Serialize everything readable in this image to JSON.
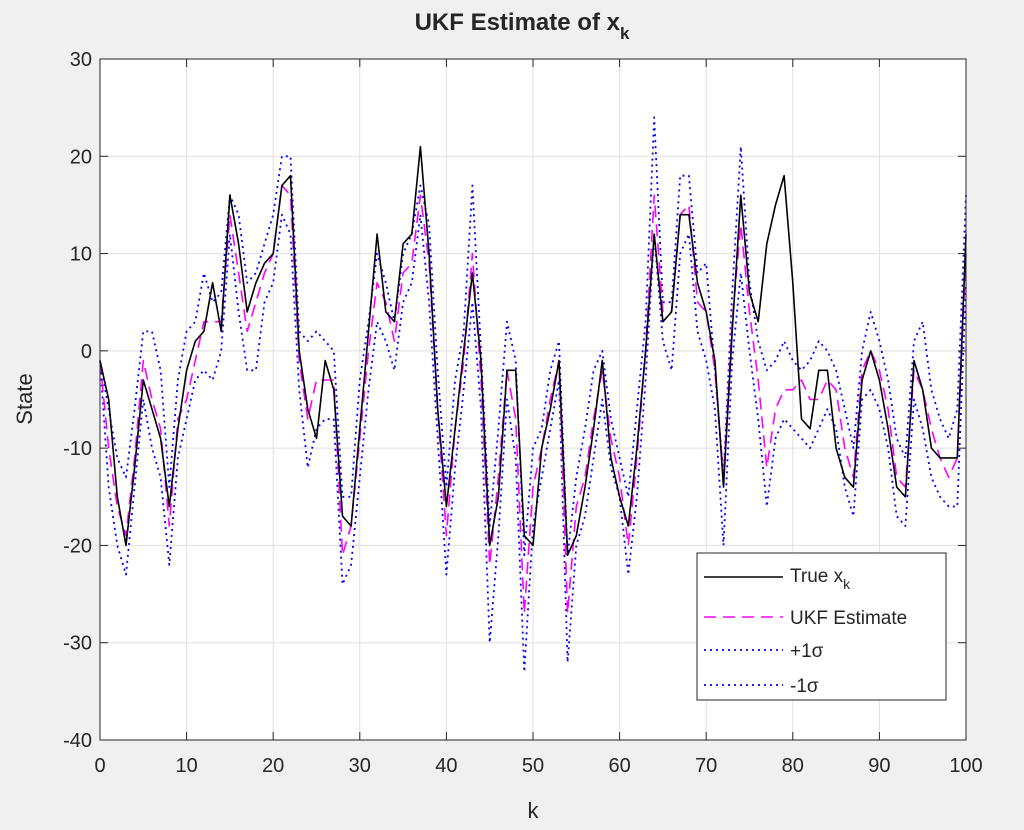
{
  "chart_data": {
    "type": "line",
    "title_main": "UKF Estimate of x",
    "title_sub": "k",
    "xlabel": "k",
    "ylabel": "State",
    "xlim": [
      0,
      100
    ],
    "ylim": [
      -40,
      30
    ],
    "xticks": [
      0,
      10,
      20,
      30,
      40,
      50,
      60,
      70,
      80,
      90,
      100
    ],
    "yticks": [
      -40,
      -30,
      -20,
      -10,
      0,
      10,
      20,
      30
    ],
    "grid": true,
    "legend_position": "bottom-right",
    "x": [
      0,
      1,
      2,
      3,
      4,
      5,
      6,
      7,
      8,
      9,
      10,
      11,
      12,
      13,
      14,
      15,
      16,
      17,
      18,
      19,
      20,
      21,
      22,
      23,
      24,
      25,
      26,
      27,
      28,
      29,
      30,
      31,
      32,
      33,
      34,
      35,
      36,
      37,
      38,
      39,
      40,
      41,
      42,
      43,
      44,
      45,
      46,
      47,
      48,
      49,
      50,
      51,
      52,
      53,
      54,
      55,
      56,
      57,
      58,
      59,
      60,
      61,
      62,
      63,
      64,
      65,
      66,
      67,
      68,
      69,
      70,
      71,
      72,
      73,
      74,
      75,
      76,
      77,
      78,
      79,
      80,
      81,
      82,
      83,
      84,
      85,
      86,
      87,
      88,
      89,
      90,
      91,
      92,
      93,
      94,
      95,
      96,
      97,
      98,
      99,
      100
    ],
    "series": [
      {
        "name": "True x",
        "name_sub": "k",
        "color": "#000000",
        "style": "solid",
        "values": [
          -1,
          -5,
          -15,
          -20,
          -12,
          -3,
          -6,
          -9,
          -16,
          -8,
          -2,
          1,
          2,
          7,
          2,
          16,
          11,
          4,
          7,
          9,
          10,
          17,
          18,
          0,
          -6,
          -9,
          -1,
          -4,
          -17,
          -18,
          -8,
          2,
          12,
          4,
          3,
          11,
          12,
          21,
          10,
          -6,
          -16,
          -8,
          0,
          8,
          -1,
          -20,
          -15,
          -2,
          -2,
          -19,
          -20,
          -10,
          -6,
          -1,
          -21,
          -19,
          -14,
          -8,
          -1,
          -11,
          -15,
          -18,
          -10,
          0,
          12,
          3,
          4,
          14,
          14,
          7,
          4,
          -1,
          -14,
          2,
          16,
          6,
          3,
          11,
          15,
          18,
          7,
          -7,
          -8,
          -2,
          -2,
          -10,
          -13,
          -14,
          -3,
          0,
          -3,
          -8,
          -14,
          -15,
          -1,
          -4,
          -10,
          -11,
          -11,
          -11,
          12
        ]
      },
      {
        "name": "UKF Estimate",
        "color": "#ff00ff",
        "style": "dashed",
        "values": [
          -1,
          -10,
          -16,
          -19,
          -11,
          -1,
          -5,
          -8,
          -18,
          -7,
          -5,
          -1,
          3,
          3,
          3,
          14,
          8,
          2,
          5,
          8,
          10,
          17,
          16,
          -1,
          -7,
          -3,
          -3,
          -3,
          -21,
          -18,
          -9,
          0,
          7,
          5,
          1,
          8,
          9,
          16,
          9,
          -6,
          -19,
          -8,
          -1,
          10,
          -3,
          -22,
          -13,
          -2,
          -7,
          -27,
          -14,
          -10,
          -5,
          -1,
          -27,
          -16,
          -13,
          -7,
          -2,
          -9,
          -13,
          -20,
          -11,
          0,
          16,
          4,
          4,
          14,
          15,
          5,
          4,
          -2,
          -13,
          3,
          13,
          4,
          -3,
          -12,
          -6,
          -4,
          -4,
          -3,
          -5,
          -5,
          -3,
          -4,
          -10,
          -13,
          -2,
          0,
          -2,
          -6,
          -13,
          -14,
          -2,
          -4,
          -8,
          -11,
          -13,
          -11,
          10
        ]
      },
      {
        "name": "+1σ",
        "color": "#0000ff",
        "style": "dotted",
        "values": [
          -1,
          -6,
          -11,
          -13,
          -6,
          2,
          2,
          -2,
          -14,
          -3,
          2,
          3,
          8,
          5,
          6,
          16,
          14,
          7,
          8,
          11,
          14,
          20,
          20,
          2,
          1,
          2,
          1,
          0,
          -15,
          -15,
          -3,
          3,
          10,
          7,
          3,
          10,
          12,
          17,
          13,
          -2,
          -14,
          -3,
          2,
          17,
          0,
          -18,
          -8,
          3,
          -1,
          -21,
          -10,
          -8,
          -2,
          1,
          -21,
          -13,
          -8,
          -2,
          0,
          -7,
          -11,
          -15,
          -6,
          3,
          24,
          5,
          5,
          18,
          18,
          8,
          9,
          -2,
          -13,
          6,
          21,
          7,
          1,
          -2,
          -1,
          1,
          -1,
          -2,
          -1,
          1,
          0,
          -2,
          -6,
          -10,
          0,
          4,
          1,
          -3,
          -9,
          -11,
          1,
          3,
          -4,
          -7,
          -9,
          -6,
          16
        ]
      },
      {
        "name": "-1σ",
        "color": "#0000ff",
        "style": "dotted",
        "values": [
          -1,
          -14,
          -20,
          -23,
          -14,
          -5,
          -10,
          -13,
          -22,
          -11,
          -7,
          -3,
          -2,
          -3,
          0,
          12,
          4,
          -2,
          -2,
          5,
          7,
          14,
          12,
          -4,
          -12,
          -8,
          -7,
          -7,
          -24,
          -22,
          -13,
          -4,
          3,
          1,
          -2,
          5,
          7,
          14,
          5,
          -9,
          -23,
          -12,
          -4,
          5,
          -6,
          -30,
          -19,
          -5,
          -11,
          -33,
          -18,
          -13,
          -8,
          -3,
          -32,
          -20,
          -17,
          -11,
          -5,
          -12,
          -15,
          -23,
          -15,
          -3,
          12,
          1,
          -2,
          10,
          12,
          2,
          -1,
          -6,
          -20,
          -1,
          8,
          0,
          -7,
          -16,
          -9,
          -7,
          -8,
          -9,
          -10,
          -8,
          -6,
          -8,
          -14,
          -17,
          -5,
          -4,
          -6,
          -10,
          -17,
          -18,
          -5,
          -8,
          -13,
          -15,
          -16,
          -16,
          7
        ]
      }
    ]
  }
}
